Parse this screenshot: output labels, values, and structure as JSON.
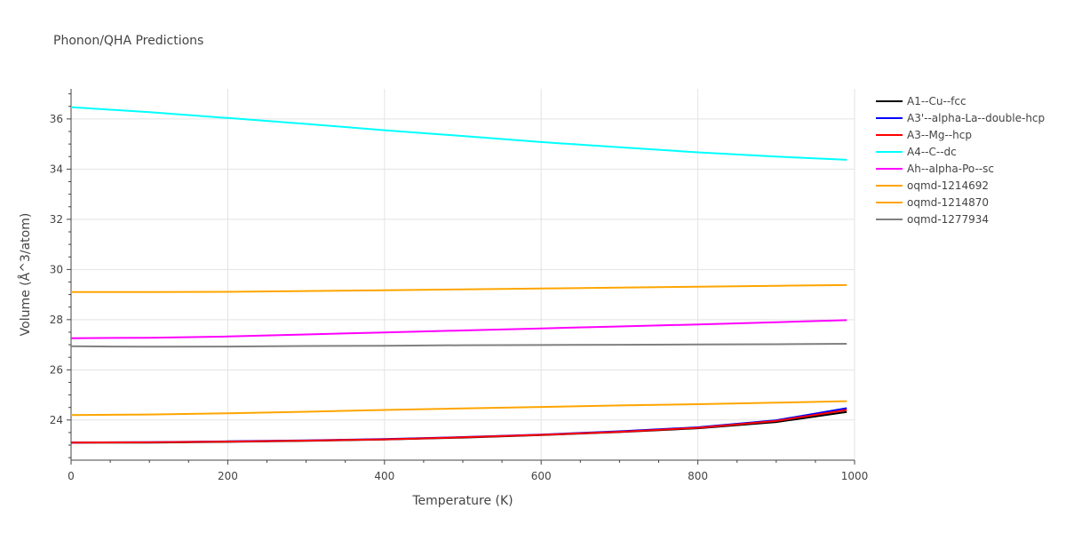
{
  "chart_data": {
    "type": "line",
    "title": "Phonon/QHA Predictions",
    "xlabel": "Temperature (K)",
    "ylabel": "Volume (Å^3/atom)",
    "xlim": [
      0,
      1000
    ],
    "ylim": [
      22.4,
      37.2
    ],
    "x_ticks": [
      0,
      200,
      400,
      600,
      800,
      1000
    ],
    "y_ticks": [
      24,
      26,
      28,
      30,
      32,
      34,
      36
    ],
    "grid": true,
    "legend_position": "right",
    "x": [
      0,
      100,
      200,
      300,
      400,
      500,
      600,
      700,
      800,
      900,
      990
    ],
    "series": [
      {
        "name": "A1--Cu--fcc",
        "color": "#000000",
        "values": [
          23.1,
          23.1,
          23.13,
          23.17,
          23.22,
          23.3,
          23.4,
          23.52,
          23.67,
          23.92,
          24.32
        ]
      },
      {
        "name": "A3'--alpha-La--double-hcp",
        "color": "#0000ff",
        "values": [
          23.1,
          23.12,
          23.15,
          23.19,
          23.24,
          23.32,
          23.42,
          23.55,
          23.71,
          23.99,
          24.47
        ]
      },
      {
        "name": "A3--Mg--hcp",
        "color": "#ff0000",
        "values": [
          23.1,
          23.11,
          23.14,
          23.18,
          23.23,
          23.31,
          23.41,
          23.53,
          23.69,
          23.96,
          24.4
        ]
      },
      {
        "name": "A4--C--dc",
        "color": "#00ffff",
        "values": [
          36.47,
          36.27,
          36.04,
          35.8,
          35.55,
          35.32,
          35.08,
          34.87,
          34.67,
          34.5,
          34.37
        ]
      },
      {
        "name": "Ah--alpha-Po--sc",
        "color": "#ff00ff",
        "values": [
          27.26,
          27.28,
          27.33,
          27.41,
          27.49,
          27.57,
          27.65,
          27.73,
          27.81,
          27.9,
          27.98
        ]
      },
      {
        "name": "oqmd-1214692",
        "color": "#ffa500",
        "values": [
          29.1,
          29.1,
          29.11,
          29.14,
          29.17,
          29.21,
          29.24,
          29.28,
          29.31,
          29.35,
          29.38
        ]
      },
      {
        "name": "oqmd-1214870",
        "color": "#ffa500",
        "values": [
          24.2,
          24.22,
          24.27,
          24.33,
          24.4,
          24.46,
          24.52,
          24.58,
          24.63,
          24.69,
          24.75
        ]
      },
      {
        "name": "oqmd-1277934",
        "color": "#808080",
        "values": [
          26.94,
          26.92,
          26.93,
          26.95,
          26.96,
          26.98,
          26.99,
          27.0,
          27.01,
          27.02,
          27.04
        ]
      }
    ]
  }
}
